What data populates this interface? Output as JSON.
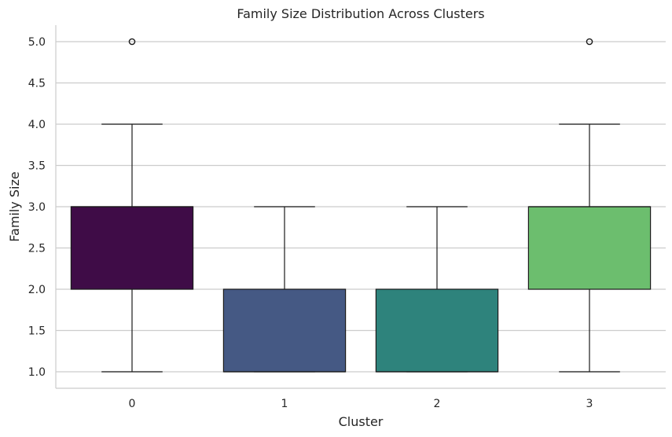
{
  "chart_data": {
    "type": "box",
    "title": "Family Size Distribution Across Clusters",
    "xlabel": "Cluster",
    "ylabel": "Family Size",
    "categories": [
      "0",
      "1",
      "2",
      "3"
    ],
    "ylim": [
      0.8,
      5.2
    ],
    "yticks": [
      "1.0",
      "1.5",
      "2.0",
      "2.5",
      "3.0",
      "3.5",
      "4.0",
      "4.5",
      "5.0"
    ],
    "grid": "horizontal",
    "colors": [
      "#3f0c47",
      "#455984",
      "#2e837c",
      "#6cbe6e"
    ],
    "boxes": [
      {
        "category": "0",
        "whisker_low": 1.0,
        "q1": 2.0,
        "median": 3.0,
        "q3": 3.0,
        "whisker_high": 4.0,
        "outliers": [
          5.0
        ]
      },
      {
        "category": "1",
        "whisker_low": 1.0,
        "q1": 1.0,
        "median": 1.0,
        "q3": 2.0,
        "whisker_high": 3.0,
        "outliers": []
      },
      {
        "category": "2",
        "whisker_low": 1.0,
        "q1": 1.0,
        "median": 1.0,
        "q3": 2.0,
        "whisker_high": 3.0,
        "outliers": []
      },
      {
        "category": "3",
        "whisker_low": 1.0,
        "q1": 2.0,
        "median": 3.0,
        "q3": 3.0,
        "whisker_high": 4.0,
        "outliers": [
          5.0
        ]
      }
    ]
  }
}
